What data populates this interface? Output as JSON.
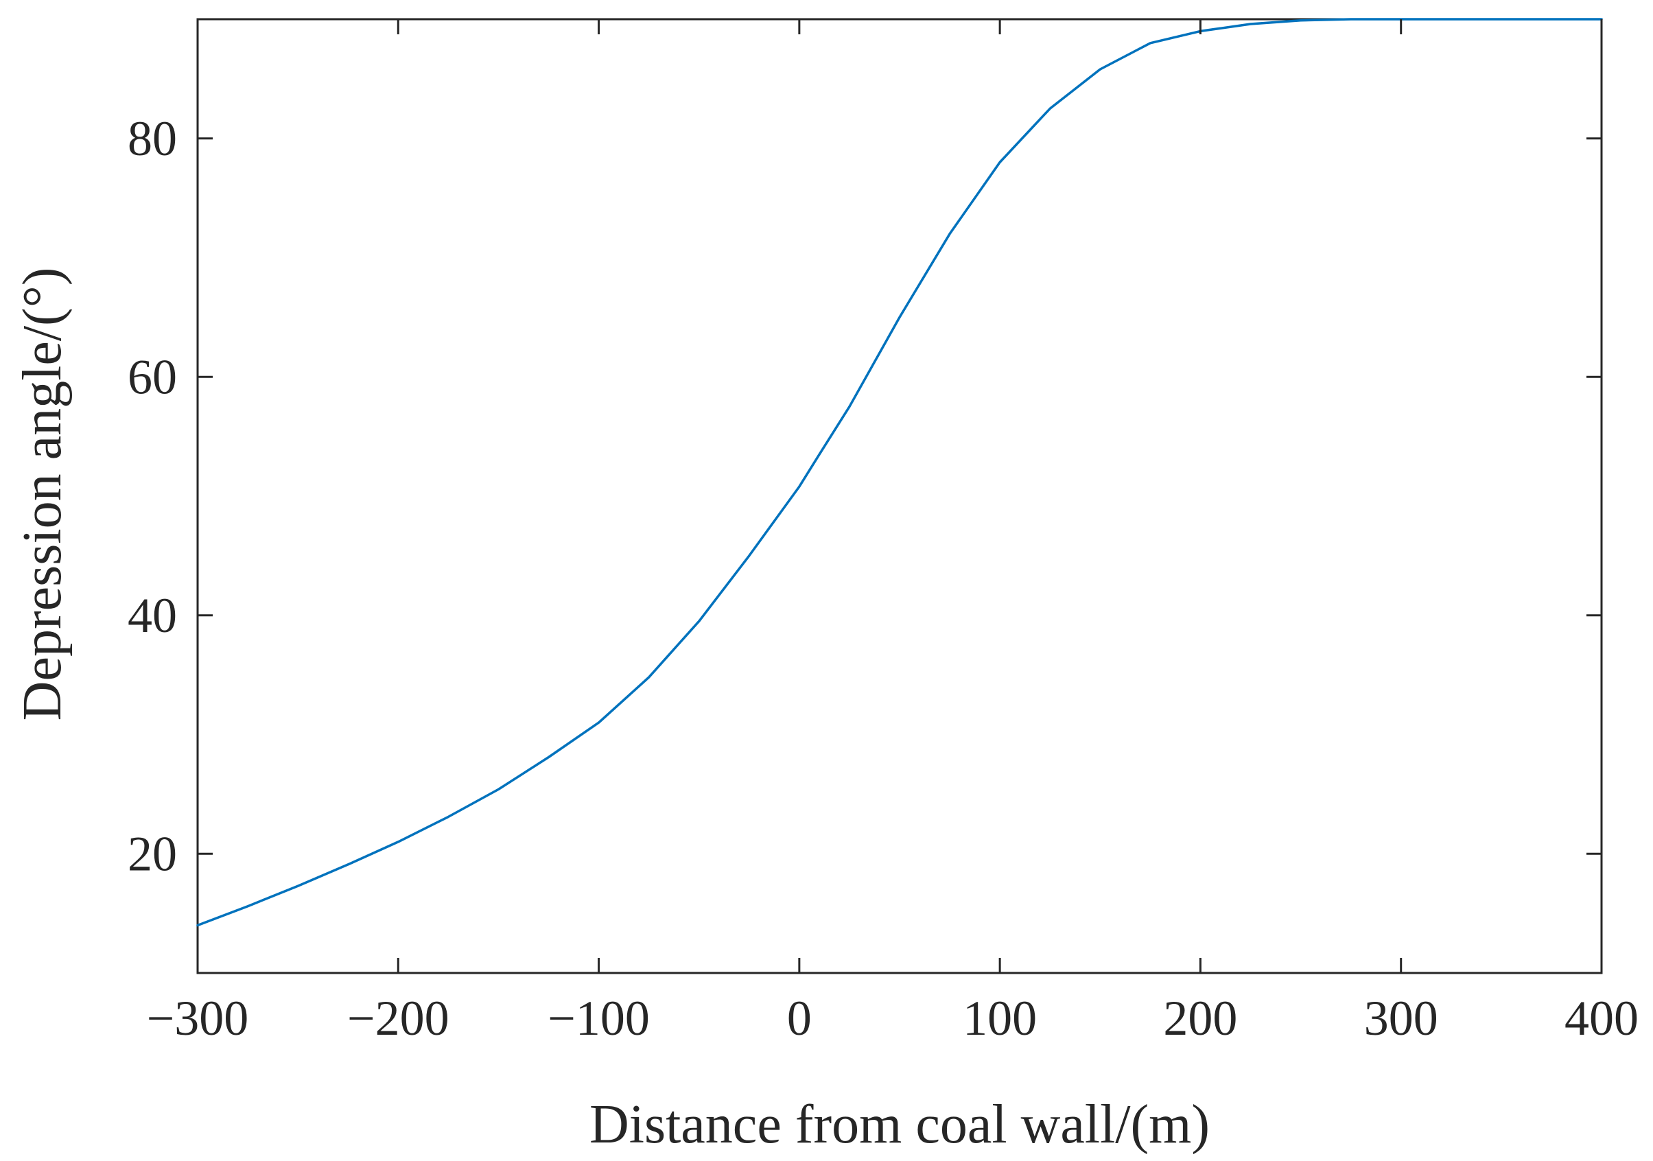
{
  "chart_data": {
    "type": "line",
    "title": "",
    "xlabel": "Distance from coal wall/(m)",
    "ylabel": "Depression angle/(°)",
    "xlim": [
      -300,
      400
    ],
    "ylim": [
      10,
      90
    ],
    "xticks": [
      -300,
      -200,
      -100,
      0,
      100,
      200,
      300,
      400
    ],
    "xtick_labels": [
      "−300",
      "−200",
      "−100",
      "0",
      "100",
      "200",
      "300",
      "400"
    ],
    "yticks": [
      20,
      40,
      60,
      80
    ],
    "ytick_labels": [
      "20",
      "40",
      "60",
      "80"
    ],
    "grid": false,
    "legend": "none",
    "series": [
      {
        "color": "#0072BD",
        "x": [
          -300,
          -275,
          -250,
          -225,
          -200,
          -175,
          -150,
          -125,
          -100,
          -75,
          -50,
          -25,
          0,
          10,
          25,
          50,
          75,
          100,
          125,
          150,
          175,
          200,
          225,
          250,
          275,
          300,
          350,
          400
        ],
        "y": [
          14,
          15.6,
          17.3,
          19.1,
          21,
          23.1,
          25.4,
          28.1,
          31,
          34.8,
          39.5,
          45,
          50.8,
          53.5,
          57.5,
          65,
          72,
          78,
          82.5,
          85.8,
          88,
          89,
          89.6,
          89.9,
          90,
          90,
          90,
          90
        ]
      }
    ]
  }
}
